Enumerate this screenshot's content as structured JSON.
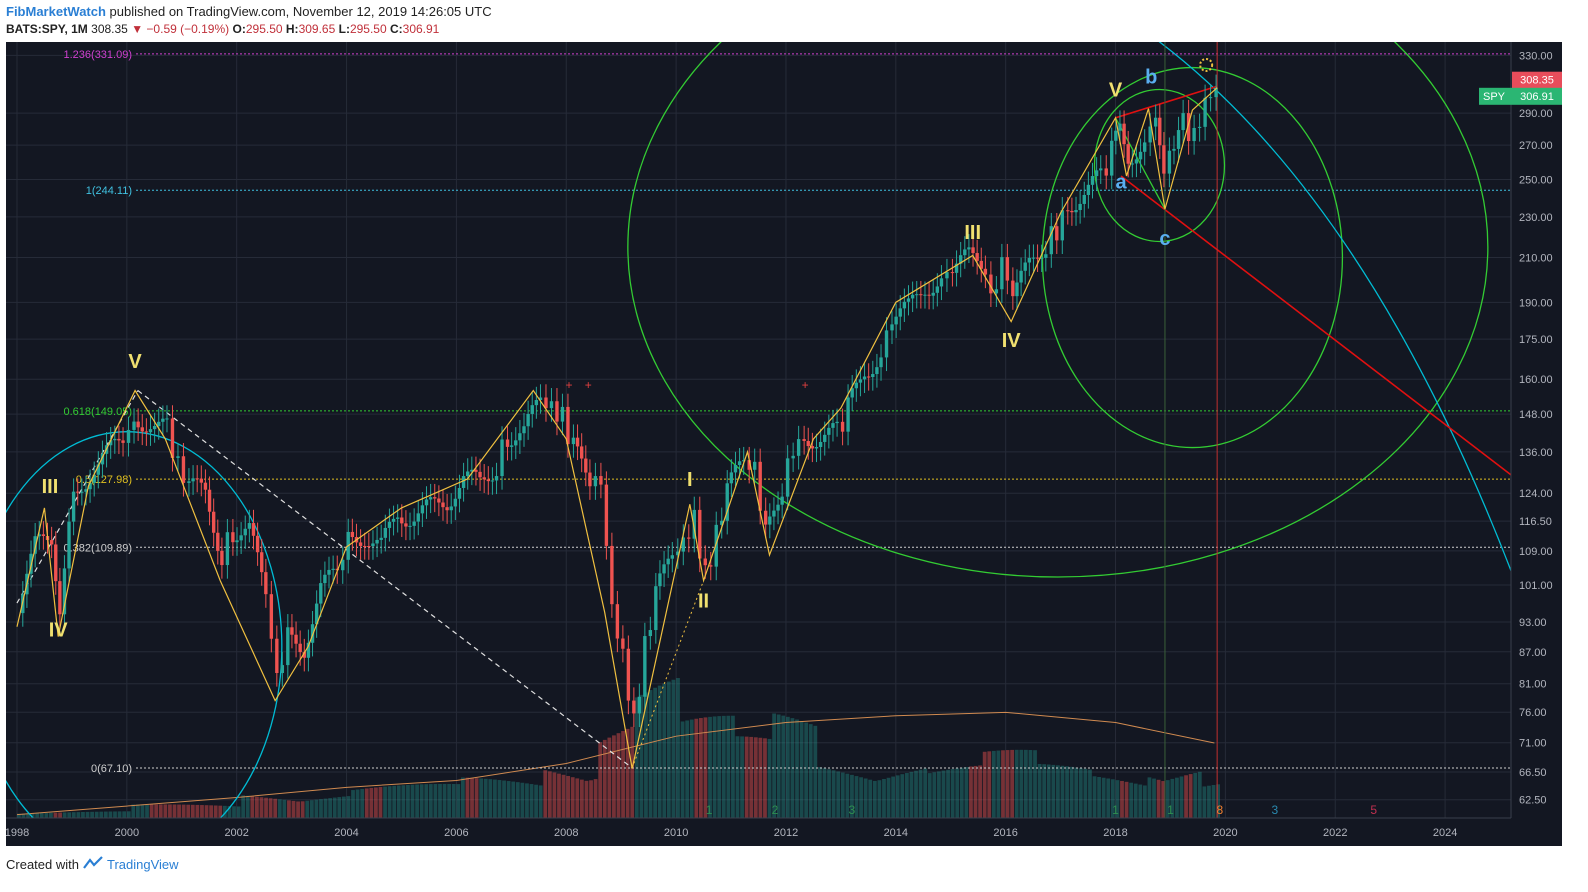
{
  "header": {
    "author": "FibMarketWatch",
    "published": "published on TradingView.com, November 12, 2019 14:26:05 UTC",
    "symbol": "BATS:SPY, 1M",
    "last": "308.35",
    "change_arrow": "▼",
    "change": "−0.59 (−0.19%)",
    "open_label": "O:",
    "open": "295.50",
    "high_label": "H:",
    "high": "309.65",
    "low_label": "L:",
    "low": "295.50",
    "close_label": "C:",
    "close": "306.91"
  },
  "footer": {
    "created_with": "Created with",
    "brand": "TradingView"
  },
  "colors": {
    "background": "#131722",
    "up": "#26a69a",
    "down": "#ef5350",
    "wave": "#f0c040",
    "fib_circle": "#33cc33",
    "arc": "#00bcd4",
    "trend_red": "#e01010",
    "price_tag": "#e84d5b",
    "spy_tag": "#2bb673"
  },
  "chart_data": {
    "type": "candlestick",
    "title": "",
    "y_scale": "log",
    "ylim": [
      60,
      340
    ],
    "xlim": [
      1997.8,
      2025.2
    ],
    "grid": true,
    "x_ticks": [
      "1998",
      "2000",
      "2002",
      "2004",
      "2006",
      "2008",
      "2010",
      "2012",
      "2014",
      "2016",
      "2018",
      "2020",
      "2022",
      "2024"
    ],
    "y_ticks": [
      "330.00",
      "290.00",
      "270.00",
      "250.00",
      "230.00",
      "210.00",
      "190.00",
      "175.00",
      "160.00",
      "148.00",
      "136.00",
      "124.00",
      "116.50",
      "109.00",
      "101.00",
      "93.00",
      "87.00",
      "81.00",
      "76.00",
      "71.00",
      "66.50",
      "62.50"
    ],
    "price_tags": [
      {
        "name": "",
        "value": "308.35",
        "y": 308.35
      },
      {
        "name": "SPY",
        "value": "306.91",
        "y": 306.91
      }
    ],
    "fib_levels": [
      {
        "label": "1.236(331.09)",
        "value": 331.09,
        "color": "#d040d0"
      },
      {
        "label": "1(244.11)",
        "value": 244.11,
        "color": "#40c0e0"
      },
      {
        "label": "0.618(149.05)",
        "value": 149.05,
        "color": "#33cc33"
      },
      {
        "label": "0.5(127.98)",
        "value": 127.98,
        "color": "#e0c020"
      },
      {
        "label": "0.382(109.89)",
        "value": 109.89,
        "color": "#cfcfcf"
      },
      {
        "label": "0(67.10)",
        "value": 67.1,
        "color": "#cfcfcf"
      }
    ],
    "wave_labels": [
      {
        "text": "III",
        "x": 1998.6,
        "y": 124,
        "color": "#f0e070"
      },
      {
        "text": "IV",
        "x": 1998.75,
        "y": 90,
        "color": "#f0e070"
      },
      {
        "text": "V",
        "x": 2000.15,
        "y": 164,
        "color": "#f0e070"
      },
      {
        "text": "I",
        "x": 2010.25,
        "y": 126,
        "color": "#f0e070"
      },
      {
        "text": "II",
        "x": 2010.5,
        "y": 96,
        "color": "#f0e070"
      },
      {
        "text": "III",
        "x": 2015.4,
        "y": 219,
        "color": "#f0e070"
      },
      {
        "text": "IV",
        "x": 2016.1,
        "y": 172,
        "color": "#f0e070"
      },
      {
        "text": "V",
        "x": 2018.0,
        "y": 301,
        "color": "#f0e070"
      },
      {
        "text": "b",
        "x": 2018.65,
        "y": 310,
        "color": "#5aaef0"
      },
      {
        "text": "a",
        "x": 2018.1,
        "y": 245,
        "color": "#5aaef0"
      },
      {
        "text": "c",
        "x": 2018.9,
        "y": 216,
        "color": "#5aaef0"
      }
    ],
    "cycle_numbers": [
      {
        "text": "1",
        "x": 2010.6
      },
      {
        "text": "2",
        "x": 2011.8
      },
      {
        "text": "3",
        "x": 2013.2
      },
      {
        "text": "1",
        "x": 2018.0
      },
      {
        "text": "1",
        "x": 2019.0
      },
      {
        "text": "8",
        "x": 2019.9
      },
      {
        "text": "3",
        "x": 2020.9
      },
      {
        "text": "5",
        "x": 2022.7
      }
    ],
    "wave_path": [
      [
        1998.0,
        92
      ],
      [
        1998.5,
        120
      ],
      [
        1998.75,
        90
      ],
      [
        1999.3,
        126
      ],
      [
        2000.15,
        156
      ],
      [
        2000.7,
        140
      ],
      [
        2001.7,
        102
      ],
      [
        2002.7,
        78
      ],
      [
        2003.3,
        88
      ],
      [
        2004.0,
        110
      ],
      [
        2005.0,
        120
      ],
      [
        2006.2,
        128
      ],
      [
        2007.4,
        156
      ],
      [
        2008.0,
        140
      ],
      [
        2008.7,
        95
      ],
      [
        2009.2,
        67
      ],
      [
        2010.25,
        121
      ],
      [
        2010.5,
        102
      ],
      [
        2011.3,
        136
      ],
      [
        2011.7,
        108
      ],
      [
        2012.5,
        140
      ],
      [
        2013.0,
        150
      ],
      [
        2014.0,
        190
      ],
      [
        2015.4,
        211
      ],
      [
        2016.1,
        182
      ],
      [
        2017.0,
        232
      ],
      [
        2018.0,
        287
      ],
      [
        2018.2,
        252
      ],
      [
        2018.6,
        293
      ],
      [
        2018.9,
        234
      ],
      [
        2019.4,
        292
      ],
      [
        2019.85,
        307
      ]
    ],
    "candles_monthly_close": [
      [
        1998.0,
        97
      ],
      [
        1998.3,
        110
      ],
      [
        1998.6,
        112
      ],
      [
        1998.75,
        97
      ],
      [
        1999.0,
        123
      ],
      [
        1999.3,
        130
      ],
      [
        1999.6,
        135
      ],
      [
        1999.9,
        140
      ],
      [
        2000.1,
        145
      ],
      [
        2000.4,
        146
      ],
      [
        2000.7,
        143
      ],
      [
        2000.9,
        132
      ],
      [
        2001.1,
        126
      ],
      [
        2001.4,
        124
      ],
      [
        2001.7,
        108
      ],
      [
        2001.9,
        114
      ],
      [
        2002.2,
        114
      ],
      [
        2002.5,
        99
      ],
      [
        2002.7,
        82
      ],
      [
        2002.9,
        90
      ],
      [
        2003.2,
        88
      ],
      [
        2003.5,
        100
      ],
      [
        2003.8,
        104
      ],
      [
        2004.0,
        112
      ],
      [
        2004.3,
        113
      ],
      [
        2004.6,
        110
      ],
      [
        2004.9,
        118
      ],
      [
        2005.2,
        118
      ],
      [
        2005.5,
        120
      ],
      [
        2005.8,
        122
      ],
      [
        2006.1,
        128
      ],
      [
        2006.4,
        127
      ],
      [
        2006.7,
        132
      ],
      [
        2006.9,
        141
      ],
      [
        2007.2,
        142
      ],
      [
        2007.5,
        153
      ],
      [
        2007.7,
        150
      ],
      [
        2007.9,
        147
      ],
      [
        2008.1,
        137
      ],
      [
        2008.4,
        128
      ],
      [
        2008.6,
        127
      ],
      [
        2008.8,
        96
      ],
      [
        2009.0,
        86
      ],
      [
        2009.2,
        74
      ],
      [
        2009.4,
        88
      ],
      [
        2009.6,
        99
      ],
      [
        2009.9,
        108
      ],
      [
        2010.1,
        111
      ],
      [
        2010.3,
        117
      ],
      [
        2010.5,
        103
      ],
      [
        2010.7,
        113
      ],
      [
        2010.9,
        125
      ],
      [
        2011.2,
        133
      ],
      [
        2011.4,
        131
      ],
      [
        2011.6,
        113
      ],
      [
        2011.9,
        126
      ],
      [
        2012.1,
        137
      ],
      [
        2012.3,
        140
      ],
      [
        2012.6,
        141
      ],
      [
        2012.9,
        142
      ],
      [
        2013.1,
        150
      ],
      [
        2013.4,
        163
      ],
      [
        2013.7,
        169
      ],
      [
        2013.9,
        184
      ],
      [
        2014.2,
        187
      ],
      [
        2014.5,
        197
      ],
      [
        2014.8,
        200
      ],
      [
        2015.0,
        205
      ],
      [
        2015.3,
        210
      ],
      [
        2015.6,
        207
      ],
      [
        2015.7,
        190
      ],
      [
        2015.9,
        208
      ],
      [
        2016.1,
        193
      ],
      [
        2016.4,
        206
      ],
      [
        2016.7,
        217
      ],
      [
        2016.9,
        223
      ],
      [
        2017.1,
        236
      ],
      [
        2017.4,
        243
      ],
      [
        2017.7,
        251
      ],
      [
        2017.9,
        266
      ],
      [
        2018.05,
        281
      ],
      [
        2018.2,
        264
      ],
      [
        2018.5,
        271
      ],
      [
        2018.7,
        290
      ],
      [
        2018.85,
        249
      ],
      [
        2018.95,
        270
      ],
      [
        2019.2,
        283
      ],
      [
        2019.4,
        275
      ],
      [
        2019.6,
        297
      ],
      [
        2019.8,
        306.9
      ]
    ],
    "volume_profile": [
      [
        1998,
        1
      ],
      [
        2000,
        2
      ],
      [
        2002,
        4
      ],
      [
        2004,
        5
      ],
      [
        2006,
        6
      ],
      [
        2007.5,
        9
      ],
      [
        2008.5,
        17
      ],
      [
        2009.2,
        22
      ],
      [
        2010,
        15
      ],
      [
        2011,
        12
      ],
      [
        2011.7,
        16
      ],
      [
        2012.5,
        9
      ],
      [
        2013.5,
        9
      ],
      [
        2014.5,
        8
      ],
      [
        2015.5,
        10
      ],
      [
        2016.5,
        8
      ],
      [
        2017.5,
        7
      ],
      [
        2018.5,
        9
      ],
      [
        2019.5,
        6
      ]
    ],
    "volume_ma": [
      [
        1998,
        0.5
      ],
      [
        2002,
        3
      ],
      [
        2004,
        4.5
      ],
      [
        2006,
        5.5
      ],
      [
        2008,
        8
      ],
      [
        2010,
        12
      ],
      [
        2012,
        14
      ],
      [
        2014,
        15
      ],
      [
        2016,
        15.5
      ],
      [
        2018,
        14
      ],
      [
        2019.8,
        11
      ]
    ]
  }
}
